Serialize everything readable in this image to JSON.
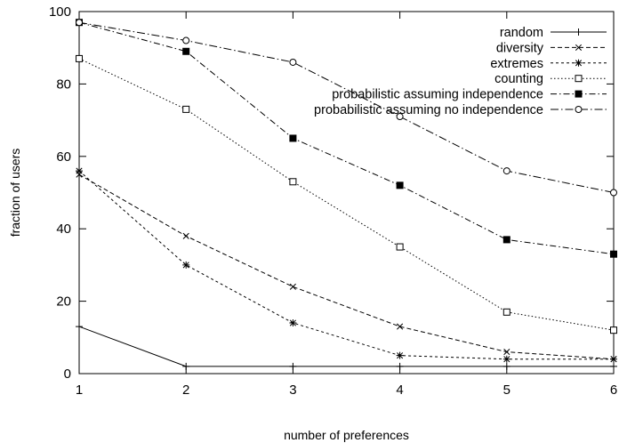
{
  "chart_data": {
    "type": "line",
    "title": "",
    "xlabel": "number of preferences",
    "ylabel": "fraction of users",
    "x": [
      1,
      2,
      3,
      4,
      5,
      6
    ],
    "xlim": [
      1,
      6
    ],
    "ylim": [
      0,
      100
    ],
    "x_ticks": [
      "1",
      "2",
      "3",
      "4",
      "5",
      "6"
    ],
    "y_ticks": [
      "0",
      "20",
      "40",
      "60",
      "80",
      "100"
    ],
    "grid": false,
    "legend_position": "top-right",
    "series": [
      {
        "name": "random",
        "values": [
          13,
          2,
          2,
          2,
          2,
          2
        ],
        "marker": "plus",
        "dash": "solid"
      },
      {
        "name": "diversity",
        "values": [
          55,
          38,
          24,
          13,
          6,
          4
        ],
        "marker": "cross",
        "dash": "dashed"
      },
      {
        "name": "extremes",
        "values": [
          56,
          30,
          14,
          5,
          4,
          4
        ],
        "marker": "star",
        "dash": "short-dashed"
      },
      {
        "name": "counting",
        "values": [
          87,
          73,
          53,
          35,
          17,
          12
        ],
        "marker": "open-square",
        "dash": "dotted"
      },
      {
        "name": "probabilistic assuming independence",
        "values": [
          97,
          89,
          65,
          52,
          37,
          33
        ],
        "marker": "filled-square",
        "dash": "dash-dot"
      },
      {
        "name": "probabilistic assuming no independence",
        "values": [
          97,
          92,
          86,
          71,
          56,
          50
        ],
        "marker": "open-circle",
        "dash": "dash-dot-long"
      }
    ]
  }
}
